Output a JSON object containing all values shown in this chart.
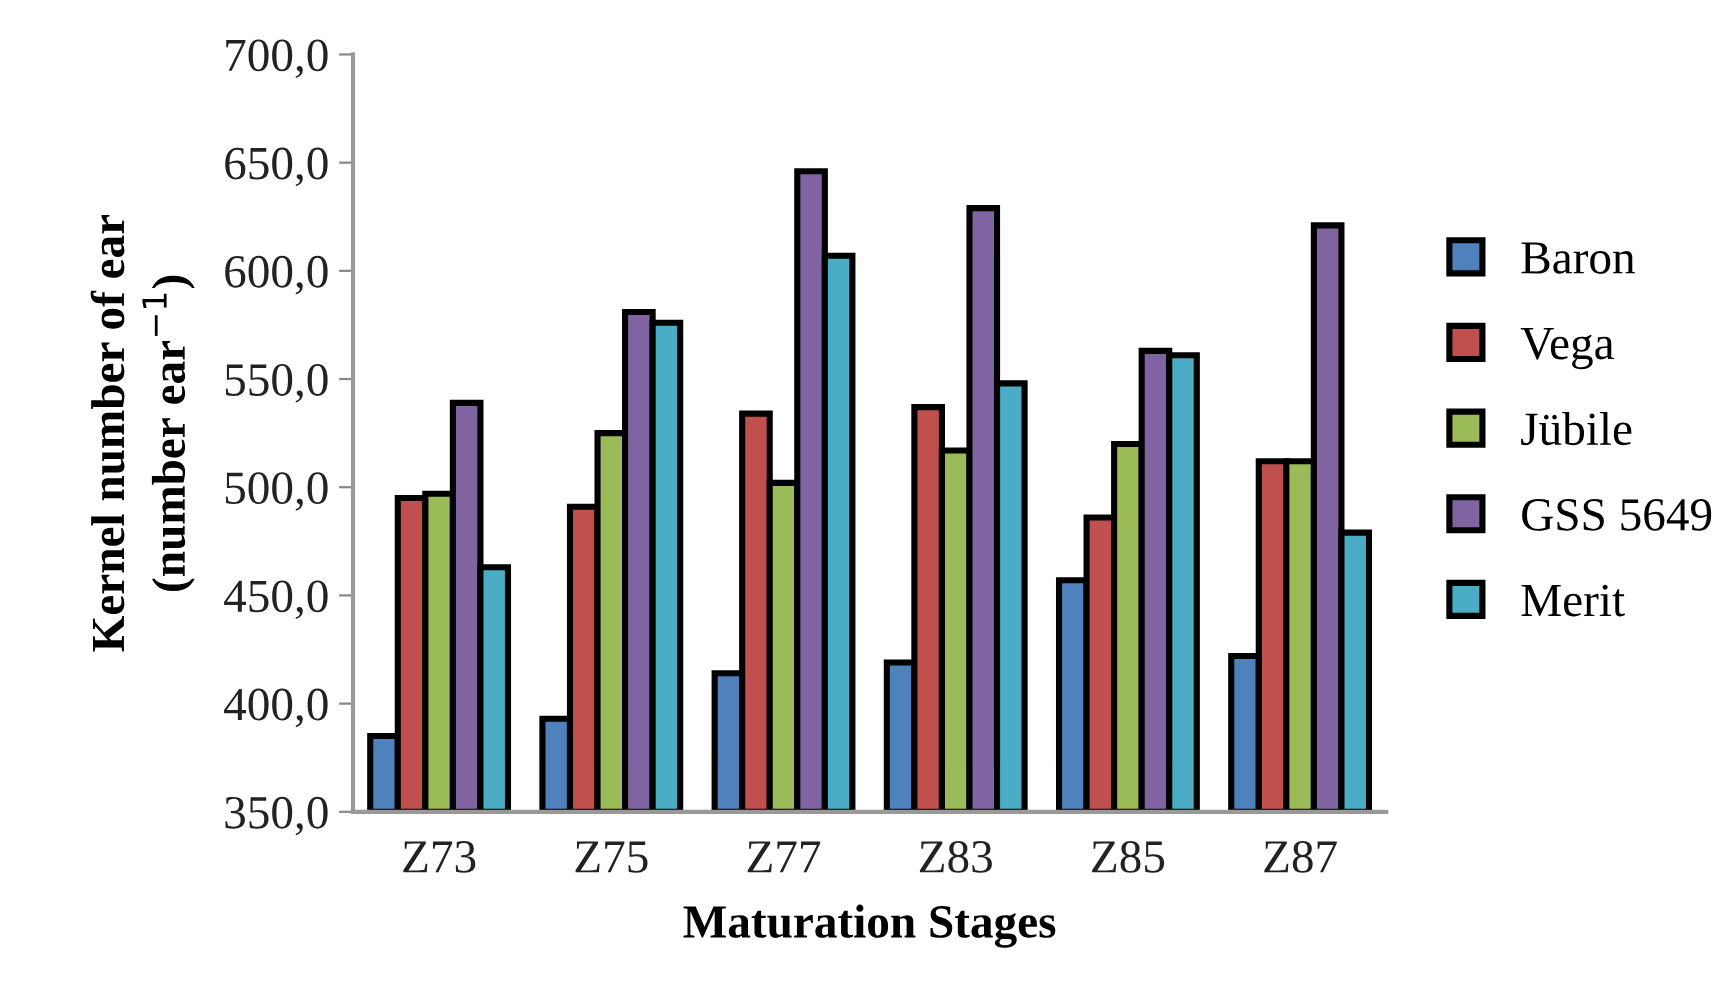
{
  "chart_data": {
    "type": "bar",
    "xlabel": "Maturation Stages",
    "ylabel": "Kernel number of ear\n(number ear$^{−1}$)",
    "categories": [
      "Z73",
      "Z75",
      "Z77",
      "Z83",
      "Z85",
      "Z87"
    ],
    "series": [
      {
        "name": "Baron",
        "color": "#4f81bd",
        "values": [
          385,
          393,
          414,
          419,
          457,
          422
        ]
      },
      {
        "name": "Vega",
        "color": "#c0504d",
        "values": [
          495,
          491,
          534,
          537,
          486,
          512
        ]
      },
      {
        "name": "Jübile",
        "color": "#9bbb59",
        "values": [
          497,
          525,
          502,
          517,
          520,
          512
        ]
      },
      {
        "name": "GSS 5649",
        "color": "#8064a2",
        "values": [
          539,
          581,
          646,
          629,
          563,
          621
        ]
      },
      {
        "name": "Merit",
        "color": "#4bacc6",
        "values": [
          463,
          576,
          607,
          548,
          561,
          479
        ]
      }
    ],
    "ylim": [
      350,
      700
    ],
    "yticks": [
      {
        "value": 350,
        "label": "350,0"
      },
      {
        "value": 400,
        "label": "400,0"
      },
      {
        "value": 450,
        "label": "450,0"
      },
      {
        "value": 500,
        "label": "500,0"
      },
      {
        "value": 550,
        "label": "550,0"
      },
      {
        "value": 600,
        "label": "600,0"
      },
      {
        "value": 650,
        "label": "650,0"
      },
      {
        "value": 700,
        "label": "700,0"
      }
    ],
    "grid": false,
    "legend": "right"
  }
}
